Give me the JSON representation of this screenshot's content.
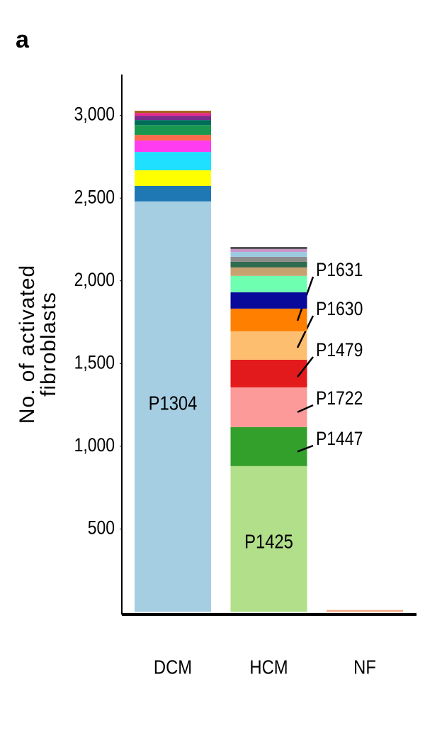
{
  "panel": "a",
  "chart_data": {
    "type": "stacked_bar",
    "ylabel": [
      "No. of activated",
      "fibroblasts"
    ],
    "categories": [
      "DCM",
      "HCM",
      "NF"
    ],
    "ylim": [
      0,
      3230
    ],
    "yticks": [
      {
        "value": 500,
        "label": "500"
      },
      {
        "value": 1000,
        "label": "1,000"
      },
      {
        "value": 1500,
        "label": "1,500"
      },
      {
        "value": 2000,
        "label": "2,000"
      },
      {
        "value": 2500,
        "label": "2,500"
      },
      {
        "value": 3000,
        "label": "3,000"
      }
    ],
    "stacks": [
      [
        {
          "value": 2480,
          "color": "#a6cee3",
          "label": "P1304"
        },
        {
          "value": 94,
          "color": "#1f78b4"
        },
        {
          "value": 94,
          "color": "#ffff00"
        },
        {
          "value": 111,
          "color": "#1fe0ff"
        },
        {
          "value": 69,
          "color": "#ff3cf0"
        },
        {
          "value": 34,
          "color": "#fb6a4a"
        },
        {
          "value": 60,
          "color": "#1a9850"
        },
        {
          "value": 30,
          "color": "#006d5b"
        },
        {
          "value": 26,
          "color": "#7b2d8b"
        },
        {
          "value": 17,
          "color": "#e7298a"
        },
        {
          "value": 13,
          "color": "#a6611a"
        }
      ],
      [
        {
          "value": 880,
          "color": "#b2df8a",
          "label": "P1425"
        },
        {
          "value": 236,
          "color": "#33a02c",
          "side_label": "P1447"
        },
        {
          "value": 240,
          "color": "#fb9a99",
          "side_label": "P1722"
        },
        {
          "value": 167,
          "color": "#e31a1c",
          "side_label": "P1479"
        },
        {
          "value": 172,
          "color": "#fdbf6f",
          "side_label": "P1630"
        },
        {
          "value": 137,
          "color": "#ff7f00",
          "side_label": "P1631"
        },
        {
          "value": 99,
          "color": "#0a0a9a"
        },
        {
          "value": 99,
          "color": "#6effb0"
        },
        {
          "value": 51,
          "color": "#c8a26e"
        },
        {
          "value": 34,
          "color": "#2e6b4f"
        },
        {
          "value": 30,
          "color": "#8c8c8c"
        },
        {
          "value": 30,
          "color": "#9ecae1"
        },
        {
          "value": 17,
          "color": "#c994c7"
        },
        {
          "value": 13,
          "color": "#555555"
        }
      ],
      [
        {
          "value": 10,
          "color": "#f4a582"
        }
      ]
    ]
  }
}
